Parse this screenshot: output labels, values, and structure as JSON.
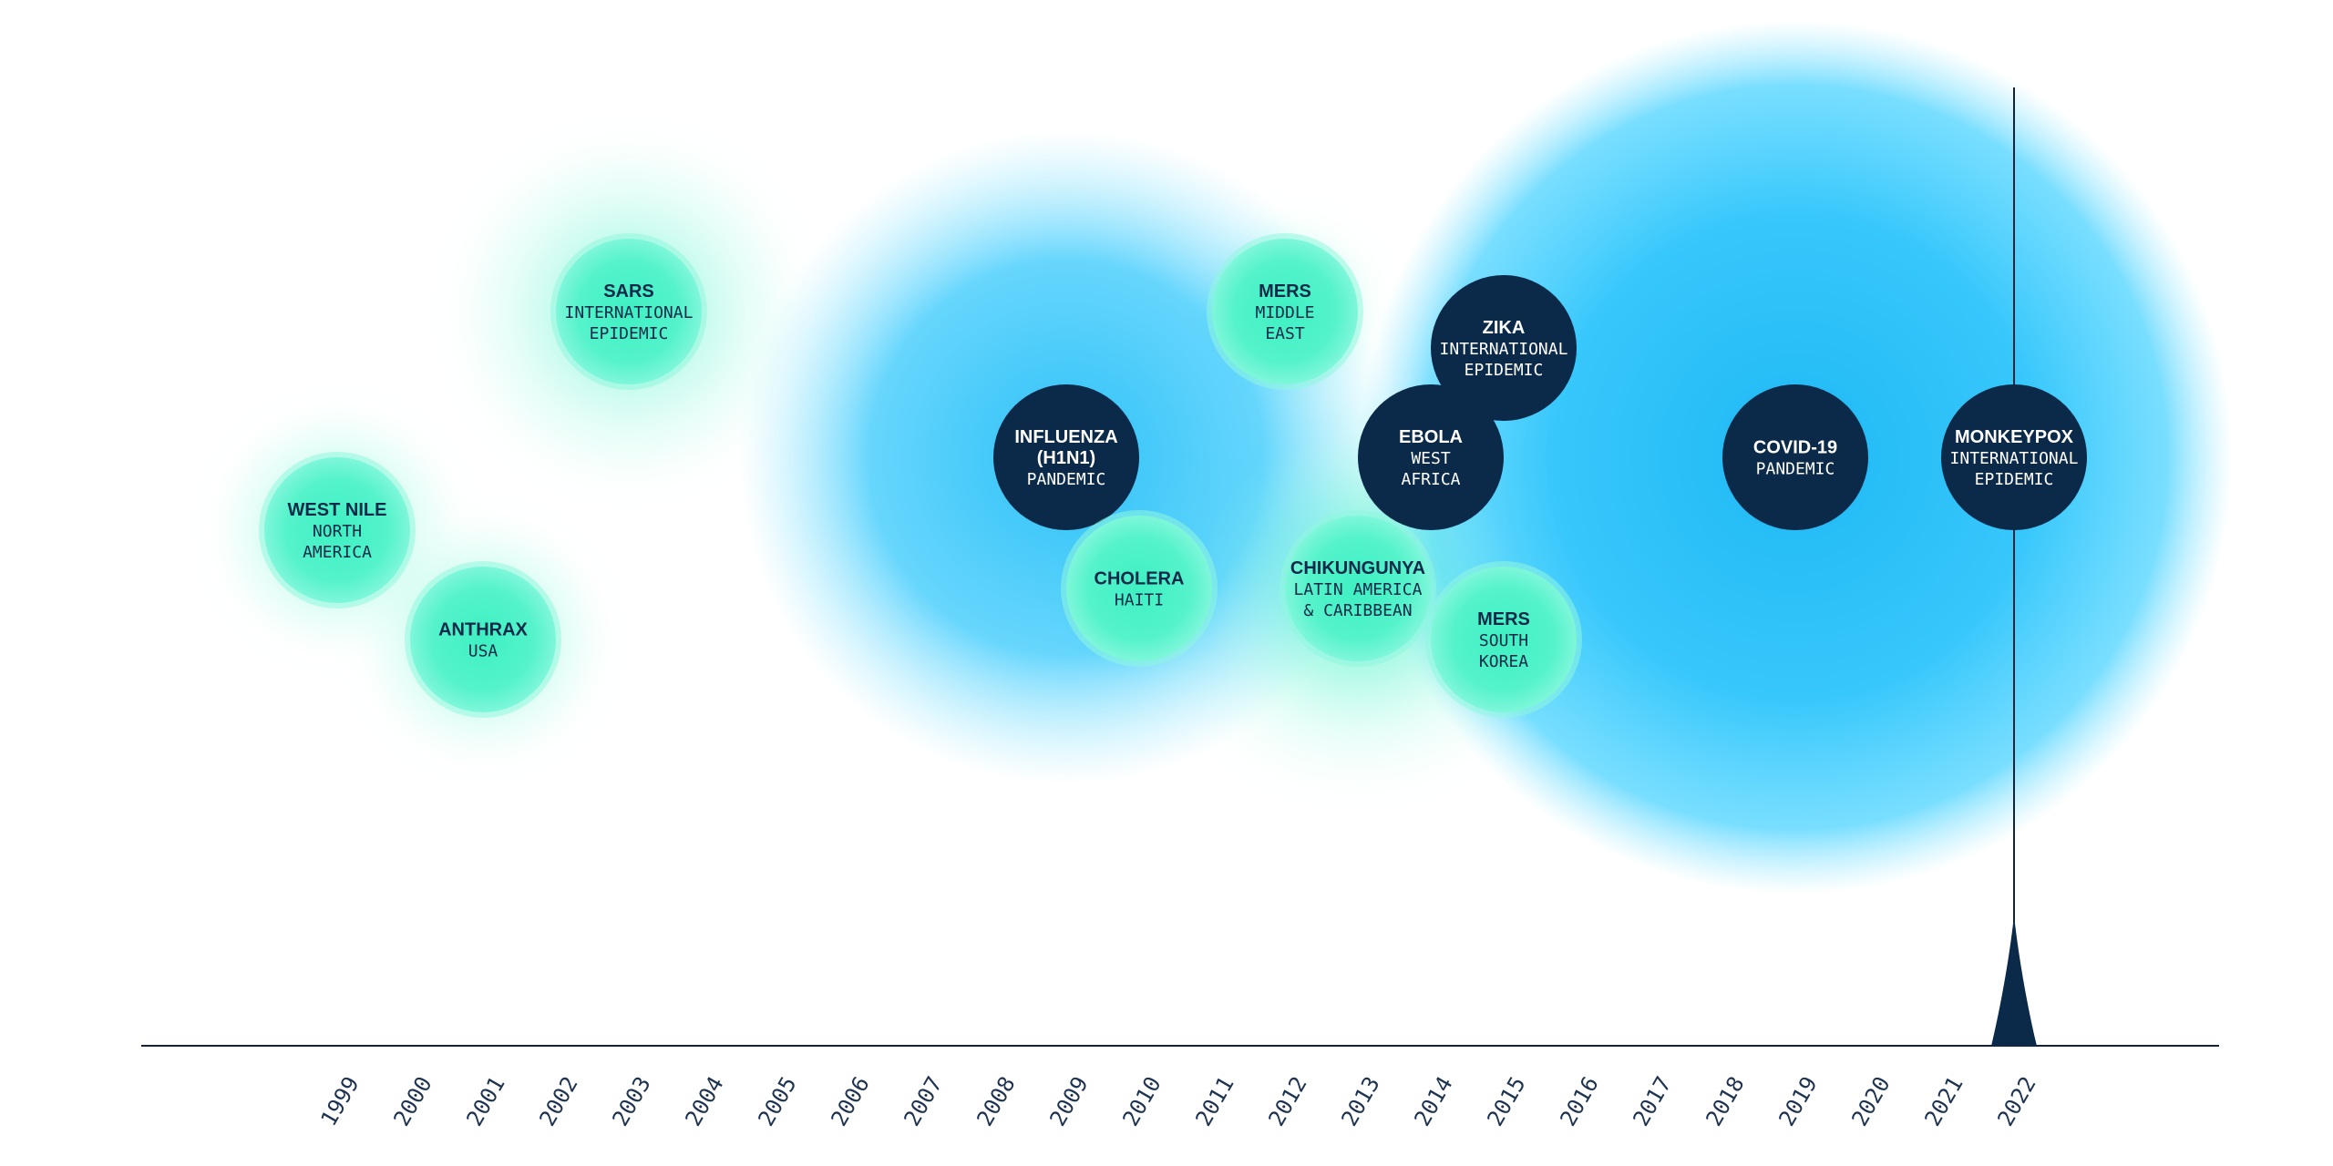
{
  "palette": {
    "teal": "#4cf2c8",
    "sky": "#2ecbff",
    "navy": "#0b2a4a",
    "axis": "#13243a",
    "text_dark": "#0b2a4a",
    "text_light": "#ffffff"
  },
  "timeline": {
    "years": [
      "1999",
      "2000",
      "2001",
      "2002",
      "2003",
      "2004",
      "2005",
      "2006",
      "2007",
      "2008",
      "2009",
      "2010",
      "2011",
      "2012",
      "2013",
      "2014",
      "2015",
      "2016",
      "2017",
      "2018",
      "2019",
      "2020",
      "2021",
      "2022"
    ],
    "current_year": "2022"
  },
  "events": [
    {
      "id": "west-nile",
      "year": 1999,
      "row": 4.5,
      "size": 1,
      "halo": 2,
      "style": "teal",
      "title": [
        "WEST NILE"
      ],
      "sub": [
        "NORTH",
        "AMERICA"
      ]
    },
    {
      "id": "anthrax",
      "year": 2001,
      "row": 6,
      "size": 1,
      "halo": 2,
      "style": "teal",
      "title": [
        "ANTHRAX"
      ],
      "sub": [
        "USA"
      ]
    },
    {
      "id": "sars",
      "year": 2003,
      "row": 1.5,
      "size": 1,
      "halo": 4,
      "style": "teal",
      "title": [
        "SARS"
      ],
      "sub": [
        "INTERNATIONAL",
        "EPIDEMIC"
      ]
    },
    {
      "id": "influenza",
      "year": 2009,
      "row": 3.5,
      "size": 1,
      "halo": 9,
      "style": "navy",
      "title": [
        "INFLUENZA",
        "(H1N1)"
      ],
      "sub": [
        "PANDEMIC"
      ]
    },
    {
      "id": "cholera",
      "year": 2010,
      "row": 5.3,
      "size": 1,
      "halo": 1,
      "style": "teal",
      "title": [
        "CHOLERA"
      ],
      "sub": [
        "HAITI"
      ]
    },
    {
      "id": "mers-middle-east",
      "year": 2012,
      "row": 1.5,
      "size": 1,
      "halo": 1,
      "style": "teal",
      "title": [
        "MERS"
      ],
      "sub": [
        "MIDDLE",
        "EAST"
      ]
    },
    {
      "id": "chikungunya",
      "year": 2013,
      "row": 5.3,
      "size": 1,
      "halo": 5,
      "style": "teal",
      "title": [
        "CHIKUNGUNYA"
      ],
      "sub": [
        "LATIN AMERICA",
        "& CARIBBEAN"
      ]
    },
    {
      "id": "ebola",
      "year": 2014,
      "row": 3.5,
      "size": 1,
      "halo": 0,
      "style": "navy",
      "title": [
        "EBOLA"
      ],
      "sub": [
        "WEST",
        "AFRICA"
      ]
    },
    {
      "id": "zika",
      "year": 2015,
      "row": 2,
      "size": 1,
      "halo": 0,
      "style": "navy",
      "title": [
        "ZIKA"
      ],
      "sub": [
        "INTERNATIONAL",
        "EPIDEMIC"
      ]
    },
    {
      "id": "mers-south-korea",
      "year": 2015,
      "row": 6,
      "size": 1,
      "halo": 1,
      "style": "teal",
      "title": [
        "MERS"
      ],
      "sub": [
        "SOUTH",
        "KOREA"
      ]
    },
    {
      "id": "covid-19",
      "year": 2019,
      "row": 3.5,
      "size": 1,
      "halo": 12,
      "style": "navy",
      "title": [
        "COVID-19"
      ],
      "sub": [
        "PANDEMIC"
      ]
    },
    {
      "id": "monkeypox",
      "year": 2022,
      "row": 3.5,
      "size": 1,
      "halo": 0,
      "style": "navy",
      "title": [
        "MONKEYPOX"
      ],
      "sub": [
        "INTERNATIONAL",
        "EPIDEMIC"
      ]
    }
  ]
}
